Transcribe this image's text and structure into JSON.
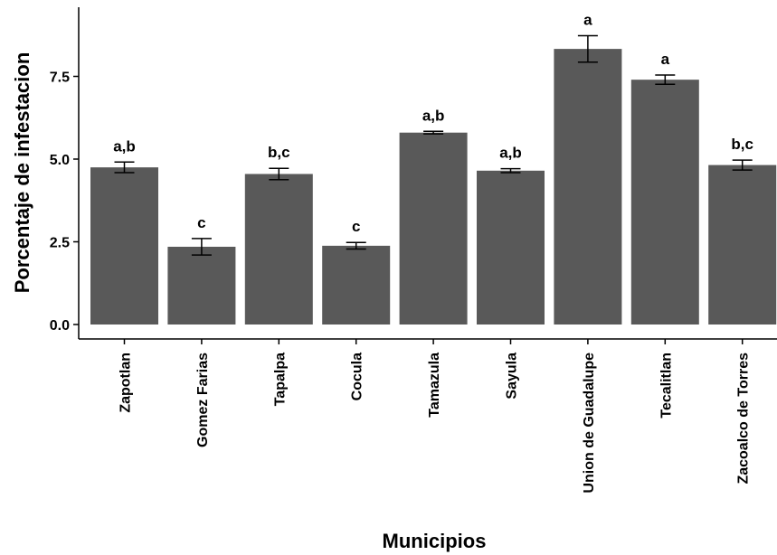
{
  "chart_data": {
    "type": "bar",
    "title": "",
    "xlabel": "Municipios",
    "ylabel": "Porcentaje de infestacion",
    "ylim": [
      0,
      9.6
    ],
    "yticks": [
      "0.0",
      "2.5",
      "5.0",
      "7.5"
    ],
    "yticks_values": [
      0,
      2.5,
      5.0,
      7.5
    ],
    "grid": false,
    "bar_color": "#595959",
    "categories": [
      "Zapotlan",
      "Gomez Farias",
      "Tapalpa",
      "Cocula",
      "Tamazula",
      "Sayula",
      "Union de Guadalupe",
      "Tecalitlan",
      "Zacoalco de Torres"
    ],
    "values": [
      4.75,
      2.35,
      4.55,
      2.38,
      5.8,
      4.65,
      8.33,
      7.4,
      4.82
    ],
    "error": [
      0.16,
      0.25,
      0.17,
      0.1,
      0.04,
      0.06,
      0.4,
      0.14,
      0.15
    ],
    "significance": [
      "a,b",
      "c",
      "b,c",
      "c",
      "a,b",
      "a,b",
      "a",
      "a",
      "b,c"
    ]
  }
}
